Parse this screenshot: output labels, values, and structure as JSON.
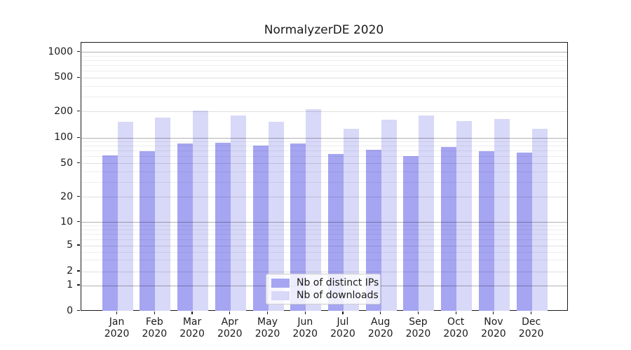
{
  "chart_data": {
    "type": "bar",
    "title": "NormalyzerDE 2020",
    "categories": [
      "Jan",
      "Feb",
      "Mar",
      "Apr",
      "May",
      "Jun",
      "Jul",
      "Aug",
      "Sep",
      "Oct",
      "Nov",
      "Dec"
    ],
    "category_year": "2020",
    "series": [
      {
        "name": "Nb of distinct IPs",
        "color": "#a5a5f2",
        "values": [
          62,
          70,
          86,
          88,
          82,
          87,
          65,
          72,
          61,
          79,
          70,
          67
        ]
      },
      {
        "name": "Nb of downloads",
        "color": "#d8d8f8",
        "values": [
          152,
          171,
          204,
          180,
          154,
          212,
          128,
          161,
          182,
          155,
          164,
          128
        ]
      }
    ],
    "yscale": "symlog",
    "y_ticks": [
      0,
      1,
      2,
      5,
      10,
      20,
      50,
      100,
      200,
      500,
      1000
    ],
    "y_minor_gridlines": [
      3,
      4,
      6,
      7,
      8,
      9,
      30,
      40,
      60,
      70,
      80,
      90,
      300,
      400,
      600,
      700,
      800,
      900
    ],
    "ylim": [
      0,
      1310
    ],
    "grid": true,
    "legend_position": "lower-center"
  }
}
